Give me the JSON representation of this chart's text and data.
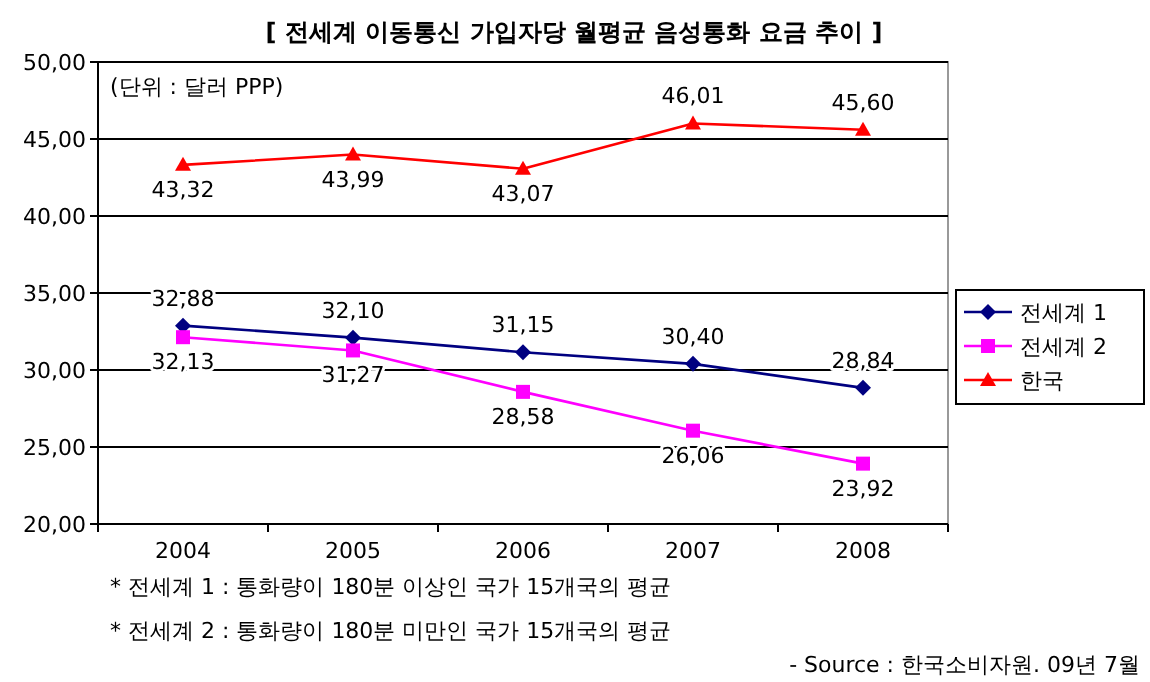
{
  "chart_data": {
    "type": "line",
    "title": "[ 전세계 이동통신 가입자당 월평균 음성통화 요금 추이 ]",
    "categories": [
      "2004",
      "2005",
      "2006",
      "2007",
      "2008"
    ],
    "series": [
      {
        "name": "전세계 1",
        "color": "#000080",
        "marker": "diamond",
        "values": [
          32.88,
          32.1,
          31.15,
          30.4,
          28.84
        ],
        "value_labels": [
          "32,88",
          "32,10",
          "31,15",
          "30,40",
          "28,84"
        ]
      },
      {
        "name": "전세계 2",
        "color": "#ff00ff",
        "marker": "square",
        "values": [
          32.13,
          31.27,
          28.58,
          26.06,
          23.92
        ],
        "value_labels": [
          "32,13",
          "31,27",
          "28,58",
          "26,06",
          "23,92"
        ]
      },
      {
        "name": "한국",
        "color": "#ff0000",
        "marker": "triangle",
        "values": [
          43.32,
          43.99,
          43.07,
          46.01,
          45.6
        ],
        "value_labels": [
          "43,32",
          "43,99",
          "43,07",
          "46,01",
          "45,60"
        ]
      }
    ],
    "ylim": [
      20,
      50
    ],
    "yticks": [
      {
        "value": 20,
        "label": "20,00"
      },
      {
        "value": 25,
        "label": "25,00"
      },
      {
        "value": 30,
        "label": "30,00"
      },
      {
        "value": 35,
        "label": "35,00"
      },
      {
        "value": 40,
        "label": "40,00"
      },
      {
        "value": 45,
        "label": "45,00"
      },
      {
        "value": 50,
        "label": "50,00"
      }
    ],
    "grid": "y",
    "legend": "right",
    "annotations": [
      "(단위 : 달러 PPP)",
      "* 전세계 1 : 통화량이 180분 이상인 국가 15개국의 평균",
      "* 전세계 2 : 통화량이 180분 미만인 국가 15개국의 평균",
      "- Source : 한국소비자원. 09년 7월"
    ]
  }
}
